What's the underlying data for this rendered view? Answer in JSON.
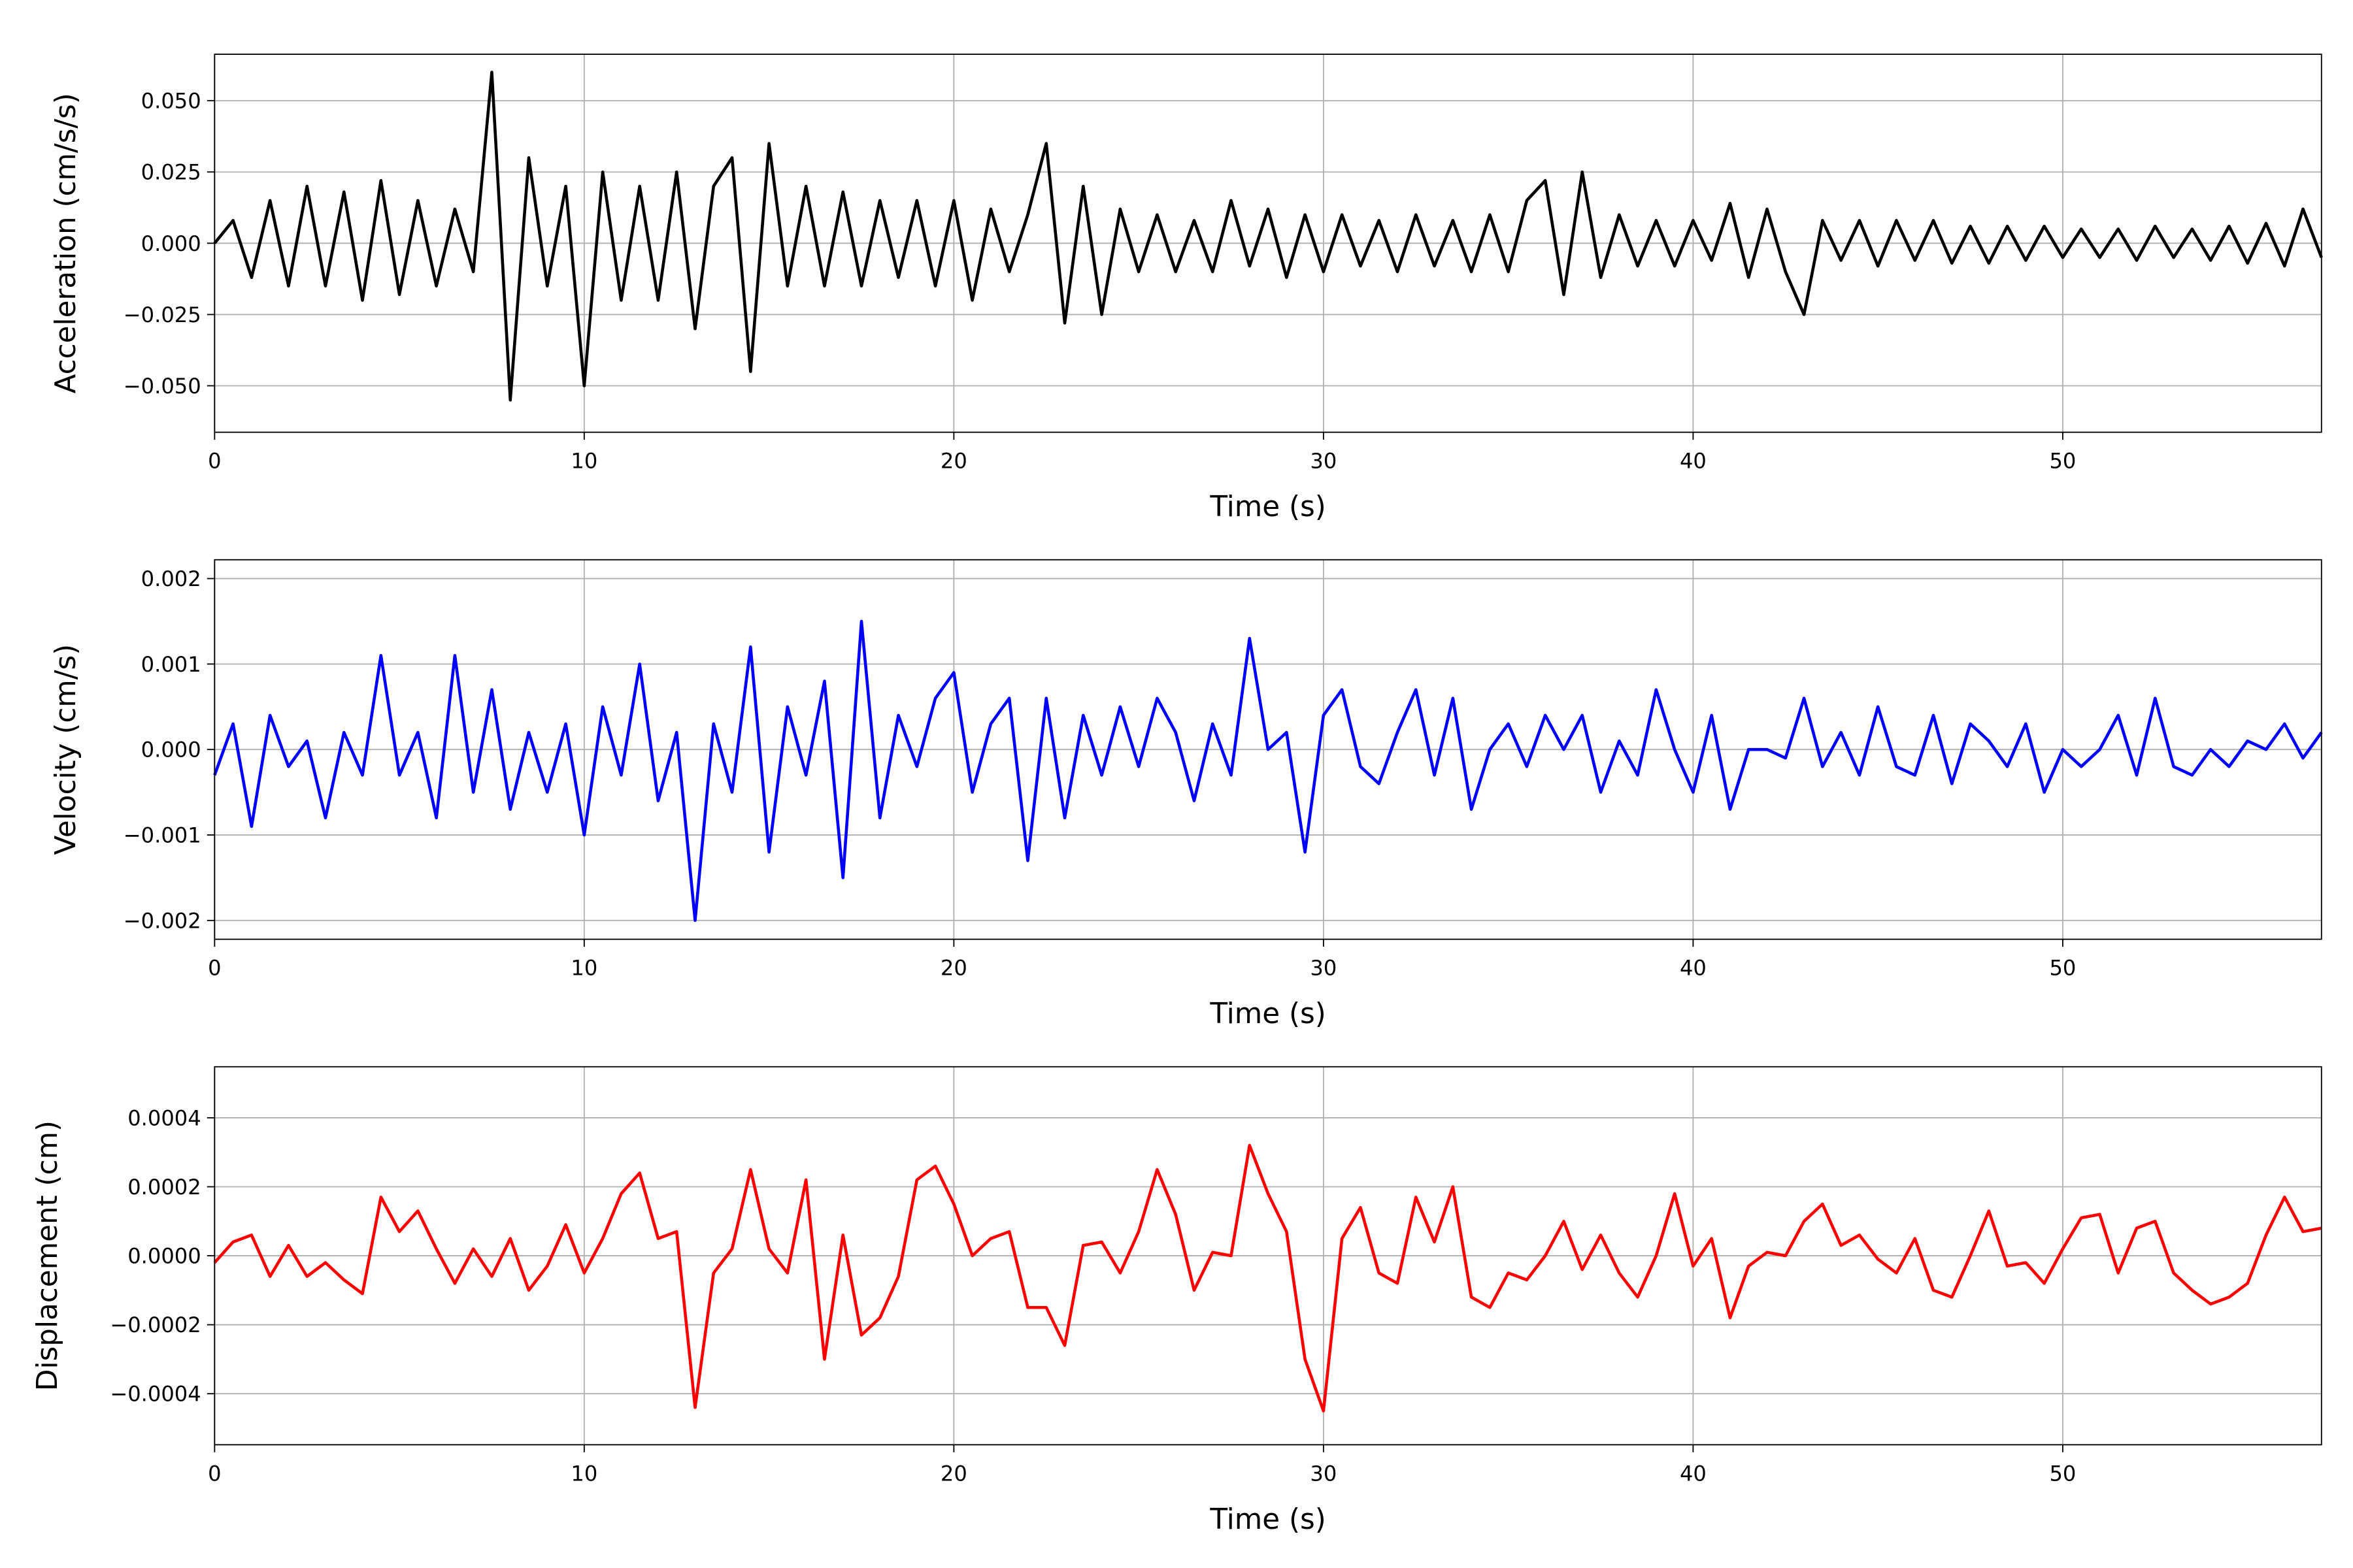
{
  "chart_data": [
    {
      "type": "line",
      "ylabel": "Acceleration (cm/s/s)",
      "xlabel": "Time (s)",
      "grid": true,
      "xlim": [
        0,
        57
      ],
      "xticks": [
        0,
        10,
        20,
        30,
        40,
        50
      ],
      "ylim": [
        -0.0663,
        0.0663
      ],
      "yticks": [
        {
          "value": -0.05,
          "label": "−0.050"
        },
        {
          "value": -0.025,
          "label": "−0.025"
        },
        {
          "value": 0,
          "label": "0.000"
        },
        {
          "value": 0.025,
          "label": "0.025"
        },
        {
          "value": 0.05,
          "label": "0.050"
        }
      ],
      "x": [
        0,
        0.5,
        1,
        1.5,
        2,
        2.5,
        3,
        3.5,
        4,
        4.5,
        5,
        5.5,
        6,
        6.5,
        7,
        7.5,
        8,
        8.5,
        9,
        9.5,
        10,
        10.5,
        11,
        11.5,
        12,
        12.5,
        13,
        13.5,
        14,
        14.5,
        15,
        15.5,
        16,
        16.5,
        17,
        17.5,
        18,
        18.5,
        19,
        19.5,
        20,
        20.5,
        21,
        21.5,
        22,
        22.5,
        23,
        23.5,
        24,
        24.5,
        25,
        25.5,
        26,
        26.5,
        27,
        27.5,
        28,
        28.5,
        29,
        29.5,
        30,
        30.5,
        31,
        31.5,
        32,
        32.5,
        33,
        33.5,
        34,
        34.5,
        35,
        35.5,
        36,
        36.5,
        37,
        37.5,
        38,
        38.5,
        39,
        39.5,
        40,
        40.5,
        41,
        41.5,
        42,
        42.5,
        43,
        43.5,
        44,
        44.5,
        45,
        45.5,
        46,
        46.5,
        47,
        47.5,
        48,
        48.5,
        49,
        49.5,
        50,
        50.5,
        51,
        51.5,
        52,
        52.5,
        53,
        53.5,
        54,
        54.5,
        55,
        55.5,
        56,
        56.5,
        57
      ],
      "series": [
        {
          "color": "#000000",
          "values": [
            0,
            0.008,
            -0.012,
            0.015,
            -0.015,
            0.02,
            -0.015,
            0.018,
            -0.02,
            0.022,
            -0.018,
            0.015,
            -0.015,
            0.012,
            -0.01,
            0.06,
            -0.055,
            0.03,
            -0.015,
            0.02,
            -0.05,
            0.025,
            -0.02,
            0.02,
            -0.02,
            0.025,
            -0.03,
            0.02,
            0.03,
            -0.045,
            0.035,
            -0.015,
            0.02,
            -0.015,
            0.018,
            -0.015,
            0.015,
            -0.012,
            0.015,
            -0.015,
            0.015,
            -0.02,
            0.012,
            -0.01,
            0.01,
            0.035,
            -0.028,
            0.02,
            -0.025,
            0.012,
            -0.01,
            0.01,
            -0.01,
            0.008,
            -0.01,
            0.015,
            -0.008,
            0.012,
            -0.012,
            0.01,
            -0.01,
            0.01,
            -0.008,
            0.008,
            -0.01,
            0.01,
            -0.008,
            0.008,
            -0.01,
            0.01,
            -0.01,
            0.015,
            0.022,
            -0.018,
            0.025,
            -0.012,
            0.01,
            -0.008,
            0.008,
            -0.008,
            0.008,
            -0.006,
            0.014,
            -0.012,
            0.012,
            -0.01,
            -0.025,
            0.008,
            -0.006,
            0.008,
            -0.008,
            0.008,
            -0.006,
            0.008,
            -0.007,
            0.006,
            -0.007,
            0.006,
            -0.006,
            0.006,
            -0.005,
            0.005,
            -0.005,
            0.005,
            -0.006,
            0.006,
            -0.005,
            0.005,
            -0.006,
            0.006,
            -0.007,
            0.007,
            -0.008,
            0.012,
            -0.005
          ]
        }
      ]
    },
    {
      "type": "line",
      "ylabel": "Velocity (cm/s)",
      "xlabel": "Time (s)",
      "grid": true,
      "xlim": [
        0,
        57
      ],
      "xticks": [
        0,
        10,
        20,
        30,
        40,
        50
      ],
      "ylim": [
        -0.00222,
        0.00222
      ],
      "yticks": [
        {
          "value": -0.002,
          "label": "−0.002"
        },
        {
          "value": -0.001,
          "label": "−0.001"
        },
        {
          "value": 0,
          "label": "0.000"
        },
        {
          "value": 0.001,
          "label": "0.001"
        },
        {
          "value": 0.002,
          "label": "0.002"
        }
      ],
      "x": [
        0,
        0.5,
        1,
        1.5,
        2,
        2.5,
        3,
        3.5,
        4,
        4.5,
        5,
        5.5,
        6,
        6.5,
        7,
        7.5,
        8,
        8.5,
        9,
        9.5,
        10,
        10.5,
        11,
        11.5,
        12,
        12.5,
        13,
        13.5,
        14,
        14.5,
        15,
        15.5,
        16,
        16.5,
        17,
        17.5,
        18,
        18.5,
        19,
        19.5,
        20,
        20.5,
        21,
        21.5,
        22,
        22.5,
        23,
        23.5,
        24,
        24.5,
        25,
        25.5,
        26,
        26.5,
        27,
        27.5,
        28,
        28.5,
        29,
        29.5,
        30,
        30.5,
        31,
        31.5,
        32,
        32.5,
        33,
        33.5,
        34,
        34.5,
        35,
        35.5,
        36,
        36.5,
        37,
        37.5,
        38,
        38.5,
        39,
        39.5,
        40,
        40.5,
        41,
        41.5,
        42,
        42.5,
        43,
        43.5,
        44,
        44.5,
        45,
        45.5,
        46,
        46.5,
        47,
        47.5,
        48,
        48.5,
        49,
        49.5,
        50,
        50.5,
        51,
        51.5,
        52,
        52.5,
        53,
        53.5,
        54,
        54.5,
        55,
        55.5,
        56,
        56.5,
        57
      ],
      "series": [
        {
          "color": "#0000ff",
          "values": [
            -0.0003,
            0.0003,
            -0.0009,
            0.0004,
            -0.0002,
            0.0001,
            -0.0008,
            0.0002,
            -0.0003,
            0.0011,
            -0.0003,
            0.0002,
            -0.0008,
            0.0011,
            -0.0005,
            0.0007,
            -0.0007,
            0.0002,
            -0.0005,
            0.0003,
            -0.001,
            0.0005,
            -0.0003,
            0.001,
            -0.0006,
            0.0002,
            -0.002,
            0.0003,
            -0.0005,
            0.0012,
            -0.0012,
            0.0005,
            -0.0003,
            0.0008,
            -0.0015,
            0.0015,
            -0.0008,
            0.0004,
            -0.0002,
            0.0006,
            0.0009,
            -0.0005,
            0.0003,
            0.0006,
            -0.0013,
            0.0006,
            -0.0008,
            0.0004,
            -0.0003,
            0.0005,
            -0.0002,
            0.0006,
            0.0002,
            -0.0006,
            0.0003,
            -0.0003,
            0.0013,
            0,
            0.0002,
            -0.0012,
            0.0004,
            0.0007,
            -0.0002,
            -0.0004,
            0.0002,
            0.0007,
            -0.0003,
            0.0006,
            -0.0007,
            0,
            0.0003,
            -0.0002,
            0.0004,
            0,
            0.0004,
            -0.0005,
            0.0001,
            -0.0003,
            0.0007,
            0,
            -0.0005,
            0.0004,
            -0.0007,
            0,
            0,
            -0.0001,
            0.0006,
            -0.0002,
            0.0002,
            -0.0003,
            0.0005,
            -0.0002,
            -0.0003,
            0.0004,
            -0.0004,
            0.0003,
            0.0001,
            -0.0002,
            0.0003,
            -0.0005,
            0,
            -0.0002,
            0,
            0.0004,
            -0.0003,
            0.0006,
            -0.0002,
            -0.0003,
            0,
            -0.0002,
            0.0001,
            0,
            0.0003,
            -0.0001,
            0.0002
          ]
        }
      ]
    },
    {
      "type": "line",
      "ylabel": "Displacement (cm)",
      "xlabel": "Time (s)",
      "grid": true,
      "xlim": [
        0,
        57
      ],
      "xticks": [
        0,
        10,
        20,
        30,
        40,
        50
      ],
      "ylim": [
        -0.000548,
        0.000548
      ],
      "yticks": [
        {
          "value": -0.0004,
          "label": "−0.0004"
        },
        {
          "value": -0.0002,
          "label": "−0.0002"
        },
        {
          "value": 0,
          "label": "0.0000"
        },
        {
          "value": 0.0002,
          "label": "0.0002"
        },
        {
          "value": 0.0004,
          "label": "0.0004"
        }
      ],
      "x": [
        0,
        0.5,
        1,
        1.5,
        2,
        2.5,
        3,
        3.5,
        4,
        4.5,
        5,
        5.5,
        6,
        6.5,
        7,
        7.5,
        8,
        8.5,
        9,
        9.5,
        10,
        10.5,
        11,
        11.5,
        12,
        12.5,
        13,
        13.5,
        14,
        14.5,
        15,
        15.5,
        16,
        16.5,
        17,
        17.5,
        18,
        18.5,
        19,
        19.5,
        20,
        20.5,
        21,
        21.5,
        22,
        22.5,
        23,
        23.5,
        24,
        24.5,
        25,
        25.5,
        26,
        26.5,
        27,
        27.5,
        28,
        28.5,
        29,
        29.5,
        30,
        30.5,
        31,
        31.5,
        32,
        32.5,
        33,
        33.5,
        34,
        34.5,
        35,
        35.5,
        36,
        36.5,
        37,
        37.5,
        38,
        38.5,
        39,
        39.5,
        40,
        40.5,
        41,
        41.5,
        42,
        42.5,
        43,
        43.5,
        44,
        44.5,
        45,
        45.5,
        46,
        46.5,
        47,
        47.5,
        48,
        48.5,
        49,
        49.5,
        50,
        50.5,
        51,
        51.5,
        52,
        52.5,
        53,
        53.5,
        54,
        54.5,
        55,
        55.5,
        56,
        56.5,
        57
      ],
      "series": [
        {
          "color": "#ff0000",
          "values": [
            -2e-05,
            4e-05,
            6e-05,
            -6e-05,
            3e-05,
            -6e-05,
            -2e-05,
            -7e-05,
            -0.00011,
            0.00017,
            7e-05,
            0.00013,
            2e-05,
            -8e-05,
            2e-05,
            -6e-05,
            5e-05,
            -0.0001,
            -3e-05,
            9e-05,
            -5e-05,
            5e-05,
            0.00018,
            0.00024,
            5e-05,
            7e-05,
            -0.00044,
            -5e-05,
            2e-05,
            0.00025,
            2e-05,
            -5e-05,
            0.00022,
            -0.0003,
            6e-05,
            -0.00023,
            -0.00018,
            -6e-05,
            0.00022,
            0.00026,
            0.00015,
            0,
            5e-05,
            7e-05,
            -0.00015,
            -0.00015,
            -0.00026,
            3e-05,
            4e-05,
            -5e-05,
            7e-05,
            0.00025,
            0.00012,
            -0.0001,
            1e-05,
            0,
            0.00032,
            0.00018,
            7e-05,
            -0.0003,
            -0.00045,
            5e-05,
            0.00014,
            -5e-05,
            -8e-05,
            0.00017,
            4e-05,
            0.0002,
            -0.00012,
            -0.00015,
            -5e-05,
            -7e-05,
            0,
            0.0001,
            -4e-05,
            6e-05,
            -5e-05,
            -0.00012,
            0,
            0.00018,
            -3e-05,
            5e-05,
            -0.00018,
            -3e-05,
            1e-05,
            0,
            0.0001,
            0.00015,
            3e-05,
            6e-05,
            -1e-05,
            -5e-05,
            5e-05,
            -0.0001,
            -0.00012,
            0,
            0.00013,
            -3e-05,
            -2e-05,
            -8e-05,
            2e-05,
            0.00011,
            0.00012,
            -5e-05,
            8e-05,
            0.0001,
            -5e-05,
            -0.0001,
            -0.00014,
            -0.00012,
            -8e-05,
            6e-05,
            0.00017,
            7e-05,
            8e-05
          ]
        }
      ]
    }
  ]
}
